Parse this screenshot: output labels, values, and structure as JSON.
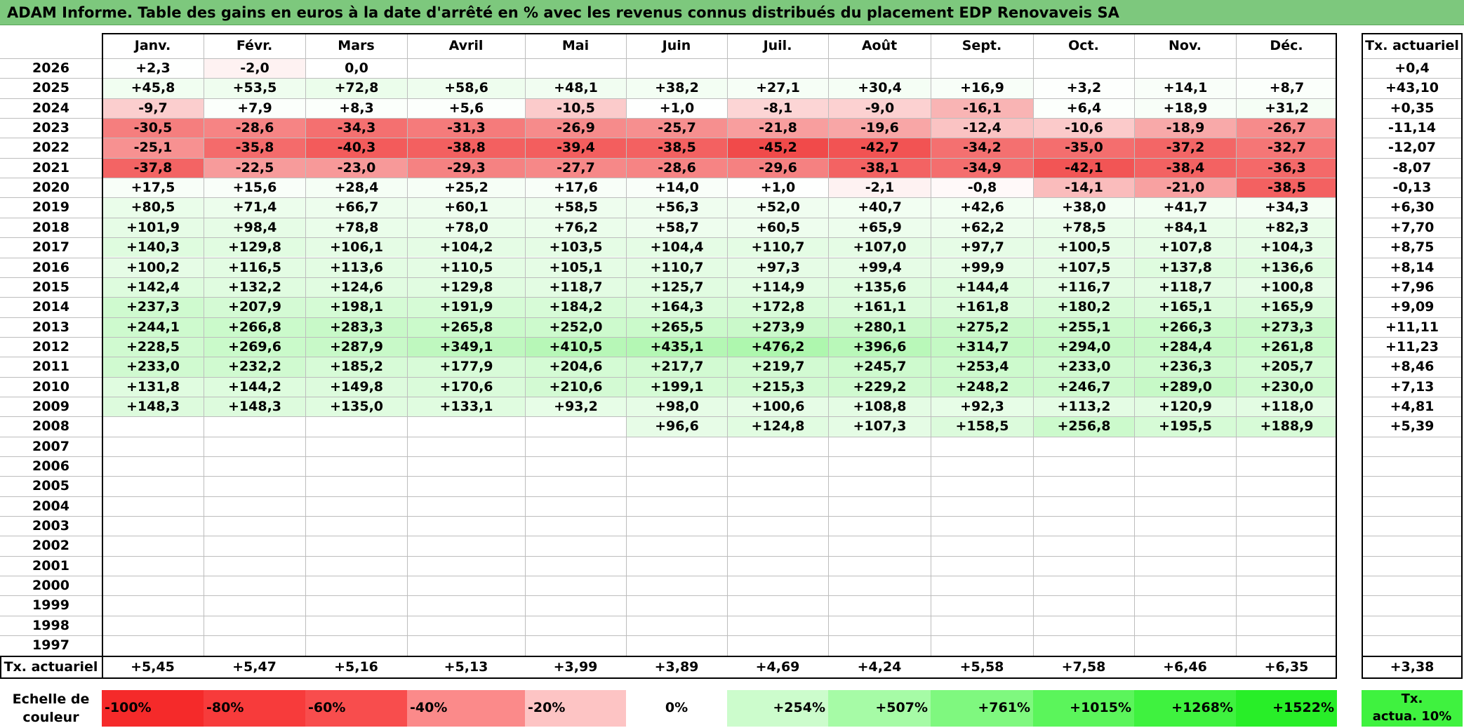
{
  "title": "ADAM Informe. Table des gains en euros à la date d'arrêté en % avec les revenus connus distribués du placement EDP Renovaveis SA",
  "months": [
    "Janv.",
    "Févr.",
    "Mars",
    "Avril",
    "Mai",
    "Juin",
    "Juil.",
    "Août",
    "Sept.",
    "Oct.",
    "Nov.",
    "Déc."
  ],
  "rate_header": "Tx. actuariel",
  "rows": [
    {
      "year": "2026",
      "values": [
        "+2,3",
        "-2,0",
        "0,0",
        "",
        "",
        "",
        "",
        "",
        "",
        "",
        "",
        ""
      ],
      "rate": "+0,4"
    },
    {
      "year": "2025",
      "values": [
        "+45,8",
        "+53,5",
        "+72,8",
        "+58,6",
        "+48,1",
        "+38,2",
        "+27,1",
        "+30,4",
        "+16,9",
        "+3,2",
        "+14,1",
        "+8,7"
      ],
      "rate": "+43,10"
    },
    {
      "year": "2024",
      "values": [
        "-9,7",
        "+7,9",
        "+8,3",
        "+5,6",
        "-10,5",
        "+1,0",
        "-8,1",
        "-9,0",
        "-16,1",
        "+6,4",
        "+18,9",
        "+31,2"
      ],
      "rate": "+0,35"
    },
    {
      "year": "2023",
      "values": [
        "-30,5",
        "-28,6",
        "-34,3",
        "-31,3",
        "-26,9",
        "-25,7",
        "-21,8",
        "-19,6",
        "-12,4",
        "-10,6",
        "-18,9",
        "-26,7"
      ],
      "rate": "-11,14"
    },
    {
      "year": "2022",
      "values": [
        "-25,1",
        "-35,8",
        "-40,3",
        "-38,8",
        "-39,4",
        "-38,5",
        "-45,2",
        "-42,7",
        "-34,2",
        "-35,0",
        "-37,2",
        "-32,7"
      ],
      "rate": "-12,07"
    },
    {
      "year": "2021",
      "values": [
        "-37,8",
        "-22,5",
        "-23,0",
        "-29,3",
        "-27,7",
        "-28,6",
        "-29,6",
        "-38,1",
        "-34,9",
        "-42,1",
        "-38,4",
        "-36,3"
      ],
      "rate": "-8,07"
    },
    {
      "year": "2020",
      "values": [
        "+17,5",
        "+15,6",
        "+28,4",
        "+25,2",
        "+17,6",
        "+14,0",
        "+1,0",
        "-2,1",
        "-0,8",
        "-14,1",
        "-21,0",
        "-38,5"
      ],
      "rate": "-0,13"
    },
    {
      "year": "2019",
      "values": [
        "+80,5",
        "+71,4",
        "+66,7",
        "+60,1",
        "+58,5",
        "+56,3",
        "+52,0",
        "+40,7",
        "+42,6",
        "+38,0",
        "+41,7",
        "+34,3"
      ],
      "rate": "+6,30"
    },
    {
      "year": "2018",
      "values": [
        "+101,9",
        "+98,4",
        "+78,8",
        "+78,0",
        "+76,2",
        "+58,7",
        "+60,5",
        "+65,9",
        "+62,2",
        "+78,5",
        "+84,1",
        "+82,3"
      ],
      "rate": "+7,70"
    },
    {
      "year": "2017",
      "values": [
        "+140,3",
        "+129,8",
        "+106,1",
        "+104,2",
        "+103,5",
        "+104,4",
        "+110,7",
        "+107,0",
        "+97,7",
        "+100,5",
        "+107,8",
        "+104,3"
      ],
      "rate": "+8,75"
    },
    {
      "year": "2016",
      "values": [
        "+100,2",
        "+116,5",
        "+113,6",
        "+110,5",
        "+105,1",
        "+110,7",
        "+97,3",
        "+99,4",
        "+99,9",
        "+107,5",
        "+137,8",
        "+136,6"
      ],
      "rate": "+8,14"
    },
    {
      "year": "2015",
      "values": [
        "+142,4",
        "+132,2",
        "+124,6",
        "+129,8",
        "+118,7",
        "+125,7",
        "+114,9",
        "+135,6",
        "+144,4",
        "+116,7",
        "+118,7",
        "+100,8"
      ],
      "rate": "+7,96"
    },
    {
      "year": "2014",
      "values": [
        "+237,3",
        "+207,9",
        "+198,1",
        "+191,9",
        "+184,2",
        "+164,3",
        "+172,8",
        "+161,1",
        "+161,8",
        "+180,2",
        "+165,1",
        "+165,9"
      ],
      "rate": "+9,09"
    },
    {
      "year": "2013",
      "values": [
        "+244,1",
        "+266,8",
        "+283,3",
        "+265,8",
        "+252,0",
        "+265,5",
        "+273,9",
        "+280,1",
        "+275,2",
        "+255,1",
        "+266,3",
        "+273,3"
      ],
      "rate": "+11,11"
    },
    {
      "year": "2012",
      "values": [
        "+228,5",
        "+269,6",
        "+287,9",
        "+349,1",
        "+410,5",
        "+435,1",
        "+476,2",
        "+396,6",
        "+314,7",
        "+294,0",
        "+284,4",
        "+261,8"
      ],
      "rate": "+11,23"
    },
    {
      "year": "2011",
      "values": [
        "+233,0",
        "+232,2",
        "+185,2",
        "+177,9",
        "+204,6",
        "+217,7",
        "+219,7",
        "+245,7",
        "+253,4",
        "+233,0",
        "+236,3",
        "+205,7"
      ],
      "rate": "+8,46"
    },
    {
      "year": "2010",
      "values": [
        "+131,8",
        "+144,2",
        "+149,8",
        "+170,6",
        "+210,6",
        "+199,1",
        "+215,3",
        "+229,2",
        "+248,2",
        "+246,7",
        "+289,0",
        "+230,0"
      ],
      "rate": "+7,13"
    },
    {
      "year": "2009",
      "values": [
        "+148,3",
        "+148,3",
        "+135,0",
        "+133,1",
        "+93,2",
        "+98,0",
        "+100,6",
        "+108,8",
        "+92,3",
        "+113,2",
        "+120,9",
        "+118,0"
      ],
      "rate": "+4,81"
    },
    {
      "year": "2008",
      "values": [
        "",
        "",
        "",
        "",
        "",
        "+96,6",
        "+124,8",
        "+107,3",
        "+158,5",
        "+256,8",
        "+195,5",
        "+188,9"
      ],
      "rate": "+5,39"
    },
    {
      "year": "2007",
      "values": [
        "",
        "",
        "",
        "",
        "",
        "",
        "",
        "",
        "",
        "",
        "",
        ""
      ],
      "rate": ""
    },
    {
      "year": "2006",
      "values": [
        "",
        "",
        "",
        "",
        "",
        "",
        "",
        "",
        "",
        "",
        "",
        ""
      ],
      "rate": ""
    },
    {
      "year": "2005",
      "values": [
        "",
        "",
        "",
        "",
        "",
        "",
        "",
        "",
        "",
        "",
        "",
        ""
      ],
      "rate": ""
    },
    {
      "year": "2004",
      "values": [
        "",
        "",
        "",
        "",
        "",
        "",
        "",
        "",
        "",
        "",
        "",
        ""
      ],
      "rate": ""
    },
    {
      "year": "2003",
      "values": [
        "",
        "",
        "",
        "",
        "",
        "",
        "",
        "",
        "",
        "",
        "",
        ""
      ],
      "rate": ""
    },
    {
      "year": "2002",
      "values": [
        "",
        "",
        "",
        "",
        "",
        "",
        "",
        "",
        "",
        "",
        "",
        ""
      ],
      "rate": ""
    },
    {
      "year": "2001",
      "values": [
        "",
        "",
        "",
        "",
        "",
        "",
        "",
        "",
        "",
        "",
        "",
        ""
      ],
      "rate": ""
    },
    {
      "year": "2000",
      "values": [
        "",
        "",
        "",
        "",
        "",
        "",
        "",
        "",
        "",
        "",
        "",
        ""
      ],
      "rate": ""
    },
    {
      "year": "1999",
      "values": [
        "",
        "",
        "",
        "",
        "",
        "",
        "",
        "",
        "",
        "",
        "",
        ""
      ],
      "rate": ""
    },
    {
      "year": "1998",
      "values": [
        "",
        "",
        "",
        "",
        "",
        "",
        "",
        "",
        "",
        "",
        "",
        ""
      ],
      "rate": ""
    },
    {
      "year": "1997",
      "values": [
        "",
        "",
        "",
        "",
        "",
        "",
        "",
        "",
        "",
        "",
        "",
        ""
      ],
      "rate": ""
    }
  ],
  "footer": {
    "label": "Tx. actuariel",
    "values": [
      "+5,45",
      "+5,47",
      "+5,16",
      "+5,13",
      "+3,99",
      "+3,89",
      "+4,69",
      "+4,24",
      "+5,58",
      "+7,58",
      "+6,46",
      "+6,35"
    ],
    "rate": "+3,38"
  },
  "legend": {
    "label_line1": "Echelle de",
    "label_line2": "couleur",
    "items": [
      {
        "label": "-100%",
        "color": "#f52a2a",
        "align": "left"
      },
      {
        "label": "-80%",
        "color": "#f73b3b",
        "align": "left"
      },
      {
        "label": "-60%",
        "color": "#f84d4d",
        "align": "left"
      },
      {
        "label": "-40%",
        "color": "#fb8a8a",
        "align": "left"
      },
      {
        "label": "-20%",
        "color": "#fdc4c4",
        "align": "left"
      },
      {
        "label": "0%",
        "color": "#ffffff",
        "align": "center"
      },
      {
        "label": "+254%",
        "color": "#ccfccc",
        "align": "right"
      },
      {
        "label": "+507%",
        "color": "#a6fba6",
        "align": "right"
      },
      {
        "label": "+761%",
        "color": "#7ff87f",
        "align": "right"
      },
      {
        "label": "+1015%",
        "color": "#5bf55b",
        "align": "right"
      },
      {
        "label": "+1268%",
        "color": "#3ff23f",
        "align": "right"
      },
      {
        "label": "+1522%",
        "color": "#28ee28",
        "align": "right"
      }
    ],
    "rate_line1": "Tx.",
    "rate_line2": "actua. 10%",
    "rate_color": "#3ff23f"
  },
  "colors": {
    "title_bg": "#7dc87d",
    "negative_max": "#f52a2a",
    "positive_max": "#28ee28",
    "neutral": "#ffffff"
  }
}
